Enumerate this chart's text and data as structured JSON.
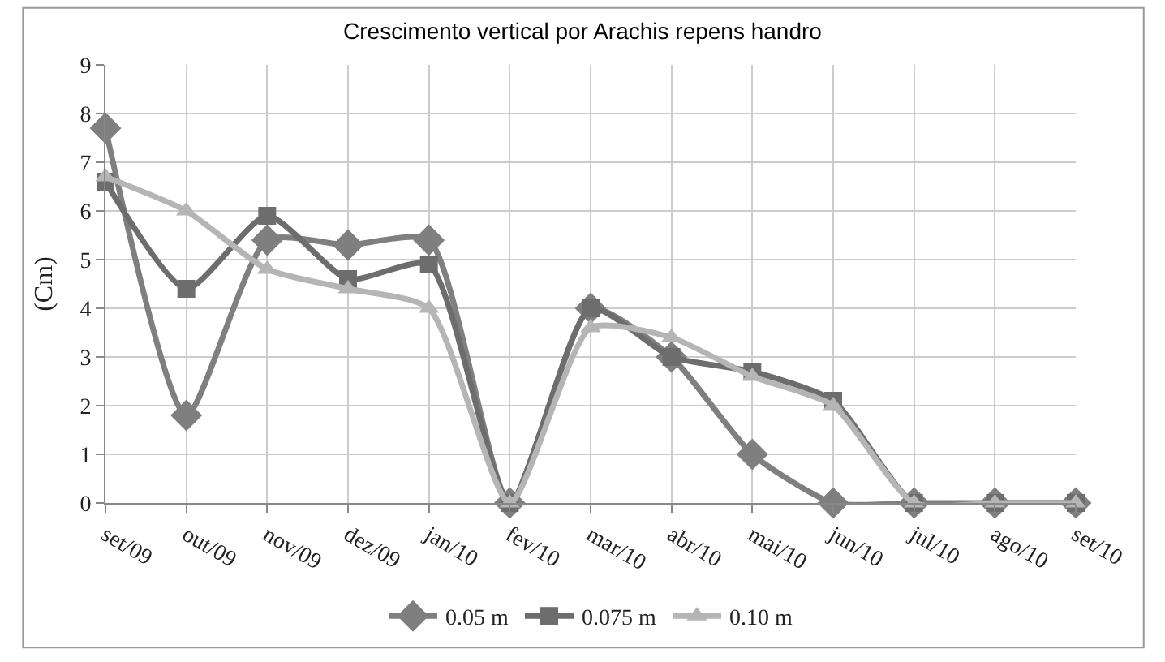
{
  "chart_data": {
    "type": "line",
    "title": "Crescimento vertical por Arachis repens handro",
    "ylabel": "(Cm)",
    "categories": [
      "set/09",
      "out/09",
      "nov/09",
      "dez/09",
      "jan/10",
      "fev/10",
      "mar/10",
      "abr/10",
      "mai/10",
      "jun/10",
      "jul/10",
      "ago/10",
      "set/10"
    ],
    "series": [
      {
        "name": "0.05 m",
        "color": "#7f7f7f",
        "marker": "diamond",
        "values": [
          7.7,
          1.8,
          5.4,
          5.3,
          5.4,
          0,
          4.0,
          3.0,
          1.0,
          0,
          0,
          0,
          0
        ]
      },
      {
        "name": "0.075 m",
        "color": "#6d6d6d",
        "marker": "square",
        "values": [
          6.6,
          4.4,
          5.9,
          4.6,
          4.9,
          0,
          4.0,
          3.0,
          2.7,
          2.1,
          0,
          0,
          0
        ]
      },
      {
        "name": "0.10 m",
        "color": "#b5b5b5",
        "marker": "triangle",
        "values": [
          6.7,
          6.0,
          4.8,
          4.4,
          4.0,
          0,
          3.6,
          3.4,
          2.6,
          2.0,
          0,
          0,
          0
        ]
      }
    ],
    "ylim": [
      0,
      9
    ],
    "yticks": [
      0,
      1,
      2,
      3,
      4,
      5,
      6,
      7,
      8,
      9
    ],
    "grid": true,
    "legend": "bottom"
  }
}
